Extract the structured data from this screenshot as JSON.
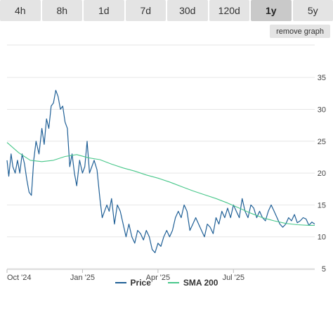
{
  "tabs": [
    {
      "label": "4h",
      "active": false
    },
    {
      "label": "8h",
      "active": false
    },
    {
      "label": "1d",
      "active": false
    },
    {
      "label": "7d",
      "active": false
    },
    {
      "label": "30d",
      "active": false
    },
    {
      "label": "120d",
      "active": false
    },
    {
      "label": "1y",
      "active": true
    },
    {
      "label": "5y",
      "active": false
    }
  ],
  "remove_graph_label": "remove graph",
  "colors": {
    "price": "#1f5f96",
    "sma": "#48c78a",
    "grid": "#e6e6e6"
  },
  "chart_data": {
    "type": "line",
    "ylim": [
      5,
      37
    ],
    "xlim": [
      0,
      53
    ],
    "yticks": [
      5,
      10,
      15,
      20,
      25,
      30,
      35
    ],
    "xticks": [
      {
        "x": 0,
        "label": "Oct '24"
      },
      {
        "x": 13,
        "label": "Jan '25"
      },
      {
        "x": 26,
        "label": "Apr '25"
      },
      {
        "x": 39,
        "label": "Jul '25"
      }
    ],
    "grid": true,
    "legend_position": "bottom",
    "series": [
      {
        "name": "Price",
        "color": "#1f5f96",
        "x": [
          0,
          0.3,
          0.7,
          1.0,
          1.4,
          1.8,
          2.2,
          2.6,
          3.0,
          3.4,
          3.8,
          4.2,
          4.6,
          5.0,
          5.5,
          6.0,
          6.4,
          6.8,
          7.2,
          7.6,
          8.0,
          8.4,
          8.8,
          9.2,
          9.6,
          10.0,
          10.4,
          10.8,
          11.2,
          11.6,
          12.0,
          12.5,
          13.0,
          13.4,
          13.8,
          14.2,
          14.6,
          15.0,
          15.5,
          16.0,
          16.4,
          16.8,
          17.2,
          17.6,
          18.0,
          18.5,
          19.0,
          19.5,
          20.0,
          20.5,
          21.0,
          21.5,
          22.0,
          22.5,
          23.0,
          23.5,
          24.0,
          24.5,
          25.0,
          25.5,
          26.0,
          26.5,
          27.0,
          27.5,
          28.0,
          28.5,
          29.0,
          29.5,
          30.0,
          30.5,
          31.0,
          31.5,
          32.0,
          32.5,
          33.0,
          33.5,
          34.0,
          34.5,
          35.0,
          35.5,
          36.0,
          36.5,
          37.0,
          37.5,
          38.0,
          38.5,
          39.0,
          39.5,
          40.0,
          40.5,
          41.0,
          41.5,
          42.0,
          42.5,
          43.0,
          43.5,
          44.0,
          44.5,
          45.0,
          45.5,
          46.0,
          46.5,
          47.0,
          47.5,
          48.0,
          48.5,
          49.0,
          49.5,
          50.0,
          50.5,
          51.0,
          51.5,
          52.0,
          52.5,
          53.0
        ],
        "y": [
          22,
          19.5,
          23,
          21,
          20,
          22,
          20,
          23,
          21.5,
          19,
          17,
          16.5,
          22,
          25,
          23,
          27,
          24.5,
          28.5,
          27,
          30.5,
          31,
          33,
          32,
          30,
          30.5,
          28,
          27,
          21,
          23,
          20,
          18,
          22,
          20,
          21,
          25,
          20,
          21,
          22,
          20.5,
          16,
          13,
          14,
          15,
          14,
          16,
          12,
          15,
          14,
          12,
          10,
          12,
          10,
          9,
          11,
          10.5,
          9.5,
          11,
          10,
          8,
          7.5,
          9,
          8.5,
          10,
          11,
          10,
          11,
          13,
          14,
          13,
          15,
          14,
          11,
          12,
          13,
          12,
          11,
          10,
          12,
          11.5,
          10.5,
          13,
          12,
          14,
          13,
          14.5,
          13,
          15,
          14,
          13,
          16,
          14,
          13,
          15,
          14.5,
          13,
          14,
          13,
          12.5,
          14,
          15,
          14,
          13,
          12,
          11.5,
          12,
          13,
          12.5,
          13.5,
          12.2,
          12.5,
          13,
          12.8,
          11.8,
          12.3,
          12
        ]
      },
      {
        "name": "SMA 200",
        "color": "#48c78a",
        "x": [
          0,
          2,
          4,
          6,
          8,
          10,
          12,
          14,
          16,
          18,
          20,
          22,
          24,
          26,
          28,
          30,
          32,
          34,
          36,
          38,
          40,
          42,
          44,
          46,
          48,
          50,
          52,
          53
        ],
        "y": [
          24.8,
          23.2,
          22.0,
          21.8,
          22.0,
          22.6,
          22.9,
          22.4,
          22.1,
          21.4,
          20.8,
          20.3,
          19.7,
          19.2,
          18.6,
          17.9,
          17.2,
          16.6,
          16.0,
          15.3,
          14.5,
          13.7,
          13.0,
          12.5,
          12.1,
          11.9,
          11.8,
          11.8
        ]
      }
    ]
  }
}
